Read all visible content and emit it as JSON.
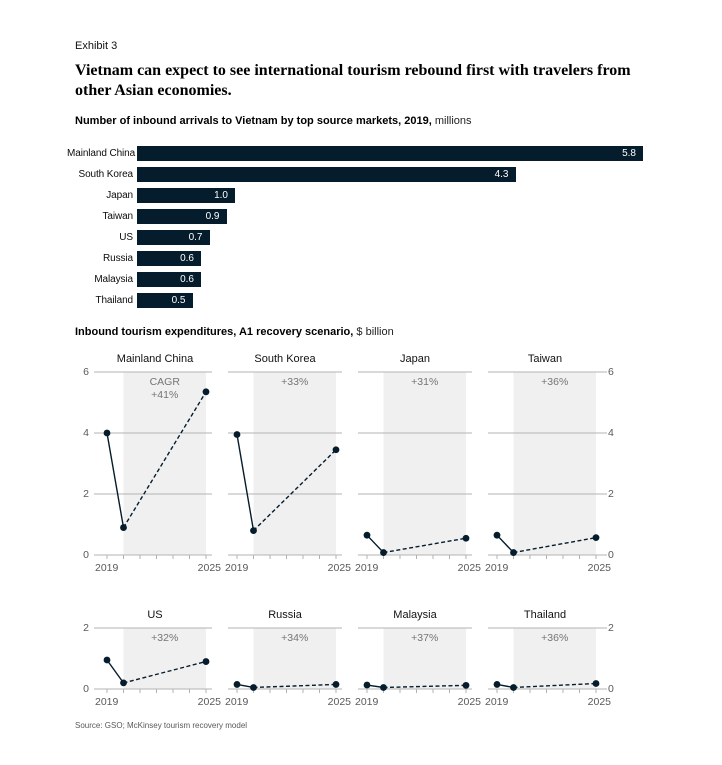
{
  "page": {
    "exhibit_label": "Exhibit 3",
    "title": "Vietnam can expect to see international tourism rebound first with travelers from other Asian economies.",
    "source": "Source: GSO; McKinsey tourism recovery model"
  },
  "colors": {
    "navy": "#051c2c",
    "band": "#f0f0f0",
    "gridline": "#b3b3b3",
    "tick": "#b3b3b3",
    "axis_text": "#595959",
    "cagr_text": "#757575",
    "bar_value_text": "#ffffff"
  },
  "chart_data": [
    {
      "type": "bar",
      "orientation": "horizontal",
      "title_bold": "Number of inbound arrivals to Vietnam by top source markets, 2019,",
      "title_light": " millions",
      "categories": [
        "Mainland China",
        "South Korea",
        "Japan",
        "Taiwan",
        "US",
        "Russia",
        "Malaysia",
        "Thailand"
      ],
      "values": [
        5.8,
        4.3,
        1.0,
        0.9,
        0.7,
        0.6,
        0.6,
        0.5
      ],
      "value_labels": [
        "5.8",
        "4.3",
        "1.0",
        "0.9",
        "0.7",
        "0.6",
        "0.6",
        "0.5"
      ],
      "xlim": [
        0,
        5.8
      ],
      "unit": "millions"
    },
    {
      "type": "line",
      "title_bold": "Inbound tourism expenditures, A1 recovery scenario,",
      "title_light": " $ billion",
      "x": [
        2019,
        2020,
        2025
      ],
      "x_axis_years": [
        2019,
        2020,
        2021,
        2022,
        2023,
        2024,
        2025
      ],
      "x_tick_labels": [
        "2019",
        "2025"
      ],
      "solid_segment": [
        2019,
        2020
      ],
      "dashed_segment": [
        2020,
        2025
      ],
      "shaded_band_years": [
        2020,
        2025
      ],
      "legend": "shaded band = forecast period, dashed line = projection",
      "rows": [
        {
          "ylim": [
            0,
            6
          ],
          "yticks": [
            0,
            2,
            4,
            6
          ],
          "charts": [
            {
              "name": "Mainland China",
              "cagr_prefix": "CAGR",
              "cagr": "+41%",
              "values": [
                4.0,
                0.9,
                5.35
              ]
            },
            {
              "name": "South Korea",
              "cagr": "+33%",
              "values": [
                3.95,
                0.8,
                3.45
              ]
            },
            {
              "name": "Japan",
              "cagr": "+31%",
              "values": [
                0.65,
                0.08,
                0.55
              ]
            },
            {
              "name": "Taiwan",
              "cagr": "+36%",
              "values": [
                0.65,
                0.08,
                0.57
              ]
            }
          ]
        },
        {
          "ylim": [
            0,
            2
          ],
          "yticks": [
            0,
            2
          ],
          "charts": [
            {
              "name": "US",
              "cagr": "+32%",
              "values": [
                0.95,
                0.2,
                0.9
              ]
            },
            {
              "name": "Russia",
              "cagr": "+34%",
              "values": [
                0.15,
                0.05,
                0.15
              ]
            },
            {
              "name": "Malaysia",
              "cagr": "+37%",
              "values": [
                0.13,
                0.05,
                0.12
              ]
            },
            {
              "name": "Thailand",
              "cagr": "+36%",
              "values": [
                0.15,
                0.05,
                0.18
              ]
            }
          ]
        }
      ]
    }
  ]
}
